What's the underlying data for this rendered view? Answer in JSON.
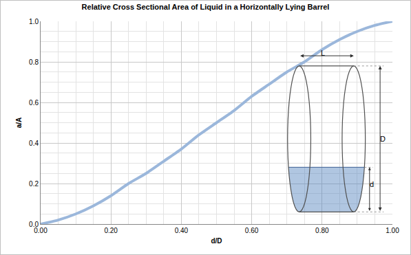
{
  "chart_data": {
    "type": "line",
    "title": "Relative Cross Sectional Area of Liquid in a Horizontally Lying Barrel",
    "x_label": "d/D",
    "y_label": "a/A",
    "x": [
      0,
      0.05,
      0.1,
      0.15,
      0.2,
      0.25,
      0.3,
      0.35,
      0.4,
      0.45,
      0.5,
      0.55,
      0.6,
      0.65,
      0.7,
      0.75,
      0.8,
      0.85,
      0.9,
      0.95,
      1
    ],
    "values": [
      0,
      0.02,
      0.05,
      0.09,
      0.14,
      0.2,
      0.25,
      0.31,
      0.37,
      0.44,
      0.5,
      0.56,
      0.63,
      0.69,
      0.75,
      0.8,
      0.86,
      0.91,
      0.95,
      0.98,
      1
    ],
    "color": "#9bb7db",
    "xlim": [
      0,
      1
    ],
    "ylim": [
      0,
      1
    ],
    "xticks": [
      {
        "value": 0,
        "label": "0.00"
      },
      {
        "value": 0.2,
        "label": "0.20"
      },
      {
        "value": 0.4,
        "label": "0.40"
      },
      {
        "value": 0.6,
        "label": "0.60"
      },
      {
        "value": 0.8,
        "label": "0.80"
      },
      {
        "value": 1,
        "label": "1.00"
      }
    ],
    "yticks": [
      {
        "value": 0,
        "label": "0.0"
      },
      {
        "value": 0.2,
        "label": "0.2"
      },
      {
        "value": 0.4,
        "label": "0.4"
      },
      {
        "value": 0.6,
        "label": "0.6"
      },
      {
        "value": 0.8,
        "label": "0.8"
      },
      {
        "value": 1,
        "label": "1.0"
      }
    ],
    "grid": true,
    "annotations": [
      "L",
      "D",
      "d"
    ]
  }
}
